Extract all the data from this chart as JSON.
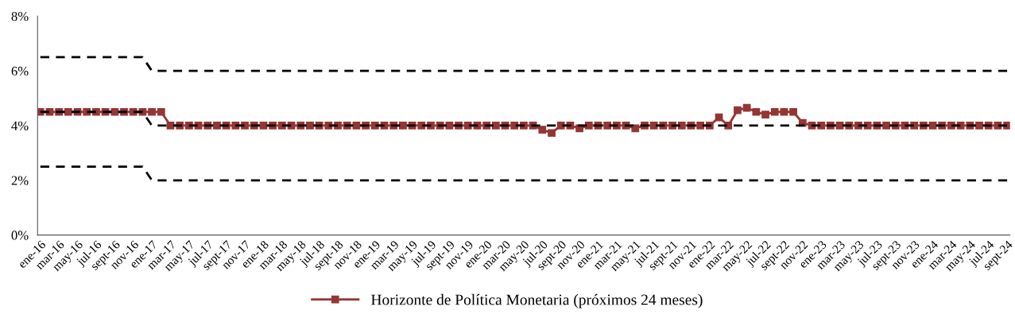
{
  "chart_data": {
    "type": "line",
    "categories": [
      "ene-16",
      null,
      "mar-16",
      null,
      "may-16",
      null,
      "jul-16",
      null,
      "sept-16",
      null,
      "nov-16",
      null,
      "ene-17",
      null,
      "mar-17",
      null,
      "may-17",
      null,
      "jul-17",
      null,
      "sept-17",
      null,
      "nov-17",
      null,
      "ene-18",
      null,
      "mar-18",
      null,
      "may-18",
      null,
      "jul-18",
      null,
      "sept-18",
      null,
      "nov-18",
      null,
      "ene-19",
      null,
      "mar-19",
      null,
      "may-19",
      null,
      "jul-19",
      null,
      "sept-19",
      null,
      "nov-19",
      null,
      "ene-20",
      null,
      "mar-20",
      null,
      "may-20",
      null,
      "jul-20",
      null,
      "sept-20",
      null,
      "nov-20",
      null,
      "ene-21",
      null,
      "mar-21",
      null,
      "may-21",
      null,
      "jul-21",
      null,
      "sept-21",
      null,
      "nov-21",
      null,
      "ene-22",
      null,
      "mar-22",
      null,
      "may-22",
      null,
      "jul-22",
      null,
      "sept-22",
      null,
      "nov-22",
      null,
      "ene-23",
      null,
      "mar-23",
      null,
      "may-23",
      null,
      "jul-23",
      null,
      "sept-23",
      null,
      "nov-23",
      null,
      "ene-24",
      null,
      "mar-24",
      null,
      "may-24",
      null,
      "jul-24",
      null,
      "sept-24"
    ],
    "series": [
      {
        "color": "#000000",
        "line_style": "dashed",
        "marker": "none",
        "values": [
          6.5,
          6.5,
          6.5,
          6.5,
          6.5,
          6.5,
          6.5,
          6.5,
          6.5,
          6.5,
          6.5,
          6.5,
          6,
          6,
          6,
          6,
          6,
          6,
          6,
          6,
          6,
          6,
          6,
          6,
          6,
          6,
          6,
          6,
          6,
          6,
          6,
          6,
          6,
          6,
          6,
          6,
          6,
          6,
          6,
          6,
          6,
          6,
          6,
          6,
          6,
          6,
          6,
          6,
          6,
          6,
          6,
          6,
          6,
          6,
          6,
          6,
          6,
          6,
          6,
          6,
          6,
          6,
          6,
          6,
          6,
          6,
          6,
          6,
          6,
          6,
          6,
          6,
          6,
          6,
          6,
          6,
          6,
          6,
          6,
          6,
          6,
          6,
          6,
          6,
          6,
          6,
          6,
          6,
          6,
          6,
          6,
          6,
          6,
          6,
          6,
          6,
          6,
          6,
          6,
          6,
          6,
          6,
          6,
          6,
          6
        ]
      },
      {
        "color": "#000000",
        "line_style": "dashed",
        "marker": "none",
        "values": [
          4.5,
          4.5,
          4.5,
          4.5,
          4.5,
          4.5,
          4.5,
          4.5,
          4.5,
          4.5,
          4.5,
          4.5,
          4,
          4,
          4,
          4,
          4,
          4,
          4,
          4,
          4,
          4,
          4,
          4,
          4,
          4,
          4,
          4,
          4,
          4,
          4,
          4,
          4,
          4,
          4,
          4,
          4,
          4,
          4,
          4,
          4,
          4,
          4,
          4,
          4,
          4,
          4,
          4,
          4,
          4,
          4,
          4,
          4,
          4,
          4,
          4,
          4,
          4,
          4,
          4,
          4,
          4,
          4,
          4,
          4,
          4,
          4,
          4,
          4,
          4,
          4,
          4,
          4,
          4,
          4,
          4,
          4,
          4,
          4,
          4,
          4,
          4,
          4,
          4,
          4,
          4,
          4,
          4,
          4,
          4,
          4,
          4,
          4,
          4,
          4,
          4,
          4,
          4,
          4,
          4,
          4,
          4,
          4,
          4,
          4
        ]
      },
      {
        "color": "#000000",
        "line_style": "dashed",
        "marker": "none",
        "values": [
          2.5,
          2.5,
          2.5,
          2.5,
          2.5,
          2.5,
          2.5,
          2.5,
          2.5,
          2.5,
          2.5,
          2.5,
          2,
          2,
          2,
          2,
          2,
          2,
          2,
          2,
          2,
          2,
          2,
          2,
          2,
          2,
          2,
          2,
          2,
          2,
          2,
          2,
          2,
          2,
          2,
          2,
          2,
          2,
          2,
          2,
          2,
          2,
          2,
          2,
          2,
          2,
          2,
          2,
          2,
          2,
          2,
          2,
          2,
          2,
          2,
          2,
          2,
          2,
          2,
          2,
          2,
          2,
          2,
          2,
          2,
          2,
          2,
          2,
          2,
          2,
          2,
          2,
          2,
          2,
          2,
          2,
          2,
          2,
          2,
          2,
          2,
          2,
          2,
          2,
          2,
          2,
          2,
          2,
          2,
          2,
          2,
          2,
          2,
          2,
          2,
          2,
          2,
          2,
          2,
          2,
          2,
          2,
          2,
          2,
          2
        ]
      },
      {
        "name": "Horizonte de Política Monetaria (próximos 24 meses)",
        "color": "#943634",
        "line_style": "solid",
        "marker": "square",
        "values": [
          4.5,
          4.5,
          4.5,
          4.5,
          4.5,
          4.5,
          4.5,
          4.5,
          4.5,
          4.5,
          4.5,
          4.5,
          4.5,
          4.5,
          4,
          4,
          4,
          4,
          4,
          4,
          4,
          4,
          4,
          4,
          4,
          4,
          4,
          4,
          4,
          4,
          4,
          4,
          4,
          4,
          4,
          4,
          4,
          4,
          4,
          4,
          4,
          4,
          4,
          4,
          4,
          4,
          4,
          4,
          4,
          4,
          4,
          4,
          4,
          4,
          3.85,
          3.73,
          4,
          4,
          3.9,
          4,
          4,
          4,
          4,
          4,
          3.9,
          4,
          4,
          4,
          4,
          4,
          4,
          4,
          4,
          4.3,
          4,
          4.56,
          4.65,
          4.5,
          4.4,
          4.5,
          4.5,
          4.5,
          4.1,
          4,
          4,
          4,
          4,
          4,
          4,
          4,
          4,
          4,
          4,
          4,
          4,
          4,
          4,
          4,
          4,
          4,
          4,
          4,
          4,
          4,
          4
        ]
      }
    ],
    "ylim": [
      0,
      8
    ],
    "yticks": [
      {
        "value": 0,
        "label": "0%"
      },
      {
        "value": 2,
        "label": "2%"
      },
      {
        "value": 4,
        "label": "4%"
      },
      {
        "value": 6,
        "label": "6%"
      },
      {
        "value": 8,
        "label": "8%"
      }
    ],
    "grid": false,
    "legend": "bottom"
  }
}
